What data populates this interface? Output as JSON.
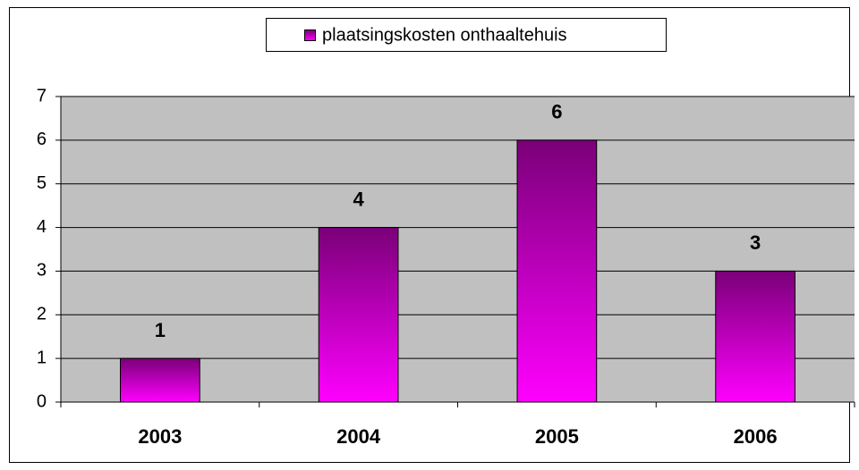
{
  "chart_data": {
    "type": "bar",
    "categories": [
      "2003",
      "2004",
      "2005",
      "2006"
    ],
    "series": [
      {
        "name": "plaatsingskosten onthaaltehuis",
        "color": "#ff00ff",
        "values": [
          1,
          4,
          6,
          3
        ]
      }
    ],
    "ylim": [
      0,
      7
    ],
    "yticks": [
      0,
      1,
      2,
      3,
      4,
      5,
      6,
      7
    ],
    "grid": true,
    "legend": "top"
  }
}
